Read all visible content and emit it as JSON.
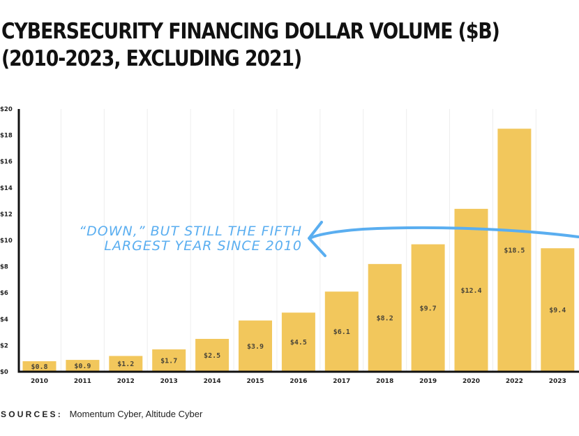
{
  "chart_data": {
    "type": "bar",
    "title_lines": [
      "CYBERSECURITY FINANCING DOLLAR VOLUME ($B)",
      "(2010-2023, EXCLUDING 2021)"
    ],
    "categories": [
      "2010",
      "2011",
      "2012",
      "2013",
      "2014",
      "2015",
      "2016",
      "2017",
      "2018",
      "2019",
      "2020",
      "2022",
      "2023"
    ],
    "values": [
      0.8,
      0.9,
      1.2,
      1.7,
      2.5,
      3.9,
      4.5,
      6.1,
      8.2,
      9.7,
      12.4,
      18.5,
      9.4
    ],
    "data_labels": [
      "$0.8",
      "$0.9",
      "$1.2",
      "$1.7",
      "$2.5",
      "$3.9",
      "$4.5",
      "$6.1",
      "$8.2",
      "$9.7",
      "$12.4",
      "$18.5",
      "$9.4"
    ],
    "y_ticks": [
      0,
      2,
      4,
      6,
      8,
      10,
      12,
      14,
      16,
      18,
      20
    ],
    "y_tick_labels": [
      "$0",
      "$2",
      "$4",
      "$6",
      "$8",
      "$10",
      "$12",
      "$14",
      "$16",
      "$18",
      "$20"
    ],
    "ylim": [
      0,
      20
    ],
    "xlabel": "",
    "ylabel": "",
    "grid": "vertical",
    "annotation": {
      "lines": [
        "“DOWN,” BUT STILL THE FIFTH",
        "LARGEST YEAR SINCE 2010"
      ],
      "points_to": "2023"
    }
  },
  "sources": {
    "label": "SOURCES:",
    "text": "Momentum Cyber, Altitude Cyber"
  },
  "colors": {
    "bar": "#f2c75c",
    "annotation": "#5aaef0",
    "axis": "#111111",
    "grid": "#eeeeee",
    "title": "#111111",
    "data_label": "#4a4538"
  }
}
